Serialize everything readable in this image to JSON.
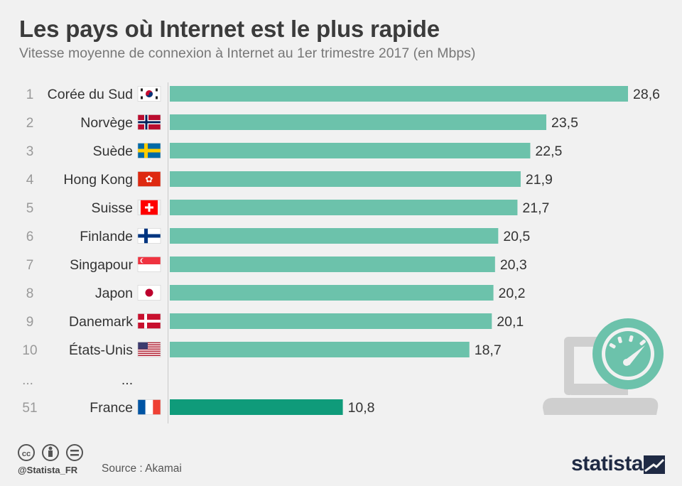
{
  "title": "Les pays où Internet est le plus rapide",
  "subtitle": "Vitesse moyenne de connexion à Internet au 1er trimestre 2017 (en Mbps)",
  "footer": {
    "handle": "@Statista_FR",
    "source": "Source : Akamai",
    "brand": "statista"
  },
  "colors": {
    "bar": "#6cc2ab",
    "bar_highlight": "#0f9b7a"
  },
  "chart_data": {
    "type": "bar",
    "orientation": "horizontal",
    "xlim": [
      0,
      28.6
    ],
    "ellipsis": {
      "rank": "...",
      "label": "..."
    },
    "rows": [
      {
        "rank": "1",
        "country": "Corée du Sud",
        "value": 28.6,
        "label": "28,6",
        "flag": "south-korea"
      },
      {
        "rank": "2",
        "country": "Norvège",
        "value": 23.5,
        "label": "23,5",
        "flag": "norway"
      },
      {
        "rank": "3",
        "country": "Suède",
        "value": 22.5,
        "label": "22,5",
        "flag": "sweden"
      },
      {
        "rank": "4",
        "country": "Hong Kong",
        "value": 21.9,
        "label": "21,9",
        "flag": "hong-kong"
      },
      {
        "rank": "5",
        "country": "Suisse",
        "value": 21.7,
        "label": "21,7",
        "flag": "switzerland"
      },
      {
        "rank": "6",
        "country": "Finlande",
        "value": 20.5,
        "label": "20,5",
        "flag": "finland"
      },
      {
        "rank": "7",
        "country": "Singapour",
        "value": 20.3,
        "label": "20,3",
        "flag": "singapore"
      },
      {
        "rank": "8",
        "country": "Japon",
        "value": 20.2,
        "label": "20,2",
        "flag": "japan"
      },
      {
        "rank": "9",
        "country": "Danemark",
        "value": 20.1,
        "label": "20,1",
        "flag": "denmark"
      },
      {
        "rank": "10",
        "country": "États-Unis",
        "value": 18.7,
        "label": "18,7",
        "flag": "united-states"
      },
      {
        "rank": "51",
        "country": "France",
        "value": 10.8,
        "label": "10,8",
        "flag": "france",
        "highlight": true
      }
    ]
  }
}
